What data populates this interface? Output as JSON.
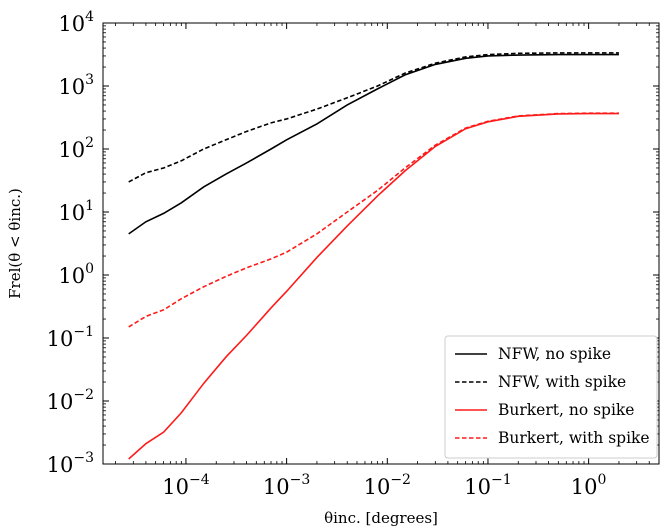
{
  "chart_data": {
    "type": "line",
    "xlabel": "θinc. [degrees]",
    "ylabel": "Frel(θ < θinc.)",
    "xscale": "log",
    "yscale": "log",
    "xlim": [
      1.5e-05,
      5
    ],
    "ylim": [
      0.001,
      10000
    ],
    "grid": false,
    "legend_position": "bottom-right",
    "x_ticks": [
      {
        "value": 0.0001,
        "base": "10",
        "exp": "−4"
      },
      {
        "value": 0.001,
        "base": "10",
        "exp": "−3"
      },
      {
        "value": 0.01,
        "base": "10",
        "exp": "−2"
      },
      {
        "value": 0.1,
        "base": "10",
        "exp": "−1"
      },
      {
        "value": 1,
        "base": "10",
        "exp": "0"
      }
    ],
    "y_ticks": [
      {
        "value": 0.001,
        "base": "10",
        "exp": "−3"
      },
      {
        "value": 0.01,
        "base": "10",
        "exp": "−2"
      },
      {
        "value": 0.1,
        "base": "10",
        "exp": "−1"
      },
      {
        "value": 1,
        "base": "10",
        "exp": "0"
      },
      {
        "value": 10,
        "base": "10",
        "exp": "1"
      },
      {
        "value": 100,
        "base": "10",
        "exp": "2"
      },
      {
        "value": 1000,
        "base": "10",
        "exp": "3"
      },
      {
        "value": 10000,
        "base": "10",
        "exp": "4"
      }
    ],
    "series": [
      {
        "name": "NFW, no spike",
        "color": "#000000",
        "dash": "solid",
        "x": [
          2.7e-05,
          4e-05,
          6e-05,
          9e-05,
          0.00015,
          0.00025,
          0.0004,
          0.0007,
          0.001,
          0.002,
          0.004,
          0.008,
          0.015,
          0.03,
          0.06,
          0.1,
          0.2,
          0.5,
          1,
          2
        ],
        "y": [
          4.5,
          7,
          9.5,
          14,
          25,
          40,
          60,
          100,
          140,
          250,
          500,
          900,
          1500,
          2200,
          2750,
          3000,
          3100,
          3150,
          3150,
          3150
        ]
      },
      {
        "name": "NFW, with spike",
        "color": "#000000",
        "dash": "dashed",
        "x": [
          2.7e-05,
          4e-05,
          6e-05,
          9e-05,
          0.00015,
          0.00025,
          0.0004,
          0.0007,
          0.001,
          0.002,
          0.004,
          0.008,
          0.015,
          0.03,
          0.06,
          0.1,
          0.2,
          0.5,
          1,
          2
        ],
        "y": [
          30,
          42,
          50,
          65,
          100,
          140,
          190,
          260,
          300,
          430,
          650,
          1000,
          1600,
          2300,
          2900,
          3150,
          3300,
          3350,
          3350,
          3350
        ]
      },
      {
        "name": "Burkert, no spike",
        "color": "#ff1a1a",
        "dash": "solid",
        "x": [
          2.7e-05,
          4e-05,
          6e-05,
          9e-05,
          0.00015,
          0.00025,
          0.0004,
          0.0007,
          0.001,
          0.002,
          0.004,
          0.008,
          0.015,
          0.03,
          0.06,
          0.1,
          0.2,
          0.5,
          1,
          2
        ],
        "y": [
          0.0012,
          0.0021,
          0.0032,
          0.0065,
          0.019,
          0.05,
          0.11,
          0.3,
          0.55,
          1.9,
          6,
          18,
          45,
          110,
          210,
          270,
          330,
          360,
          365,
          365
        ]
      },
      {
        "name": "Burkert, with spike",
        "color": "#ff1a1a",
        "dash": "dashed",
        "x": [
          2.7e-05,
          4e-05,
          6e-05,
          9e-05,
          0.00015,
          0.00025,
          0.0004,
          0.0007,
          0.001,
          0.002,
          0.004,
          0.008,
          0.015,
          0.03,
          0.06,
          0.1,
          0.2,
          0.5,
          1,
          2
        ],
        "y": [
          0.15,
          0.22,
          0.28,
          0.42,
          0.65,
          0.95,
          1.3,
          1.8,
          2.3,
          4.5,
          10,
          22,
          50,
          115,
          215,
          275,
          335,
          365,
          370,
          370
        ]
      }
    ]
  }
}
